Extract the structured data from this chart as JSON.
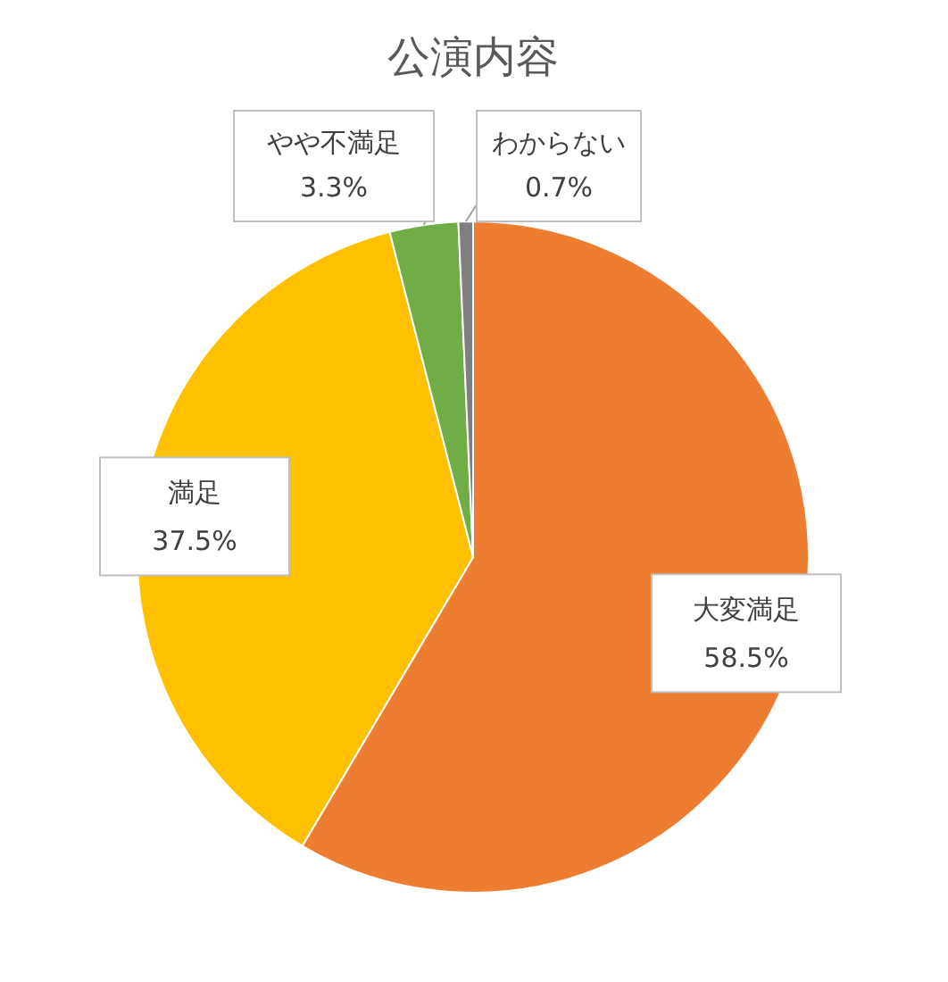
{
  "chart_data": {
    "type": "pie",
    "title": "公演内容",
    "categories": [
      "大変満足",
      "満足",
      "やや不満足",
      "わからない"
    ],
    "values": [
      58.5,
      37.5,
      3.3,
      0.7
    ],
    "value_labels": [
      "58.5%",
      "37.5%",
      "3.3%",
      "0.7%"
    ],
    "colors": [
      "#ed7d31",
      "#ffc000",
      "#70ad47",
      "#7f7f7f"
    ]
  }
}
